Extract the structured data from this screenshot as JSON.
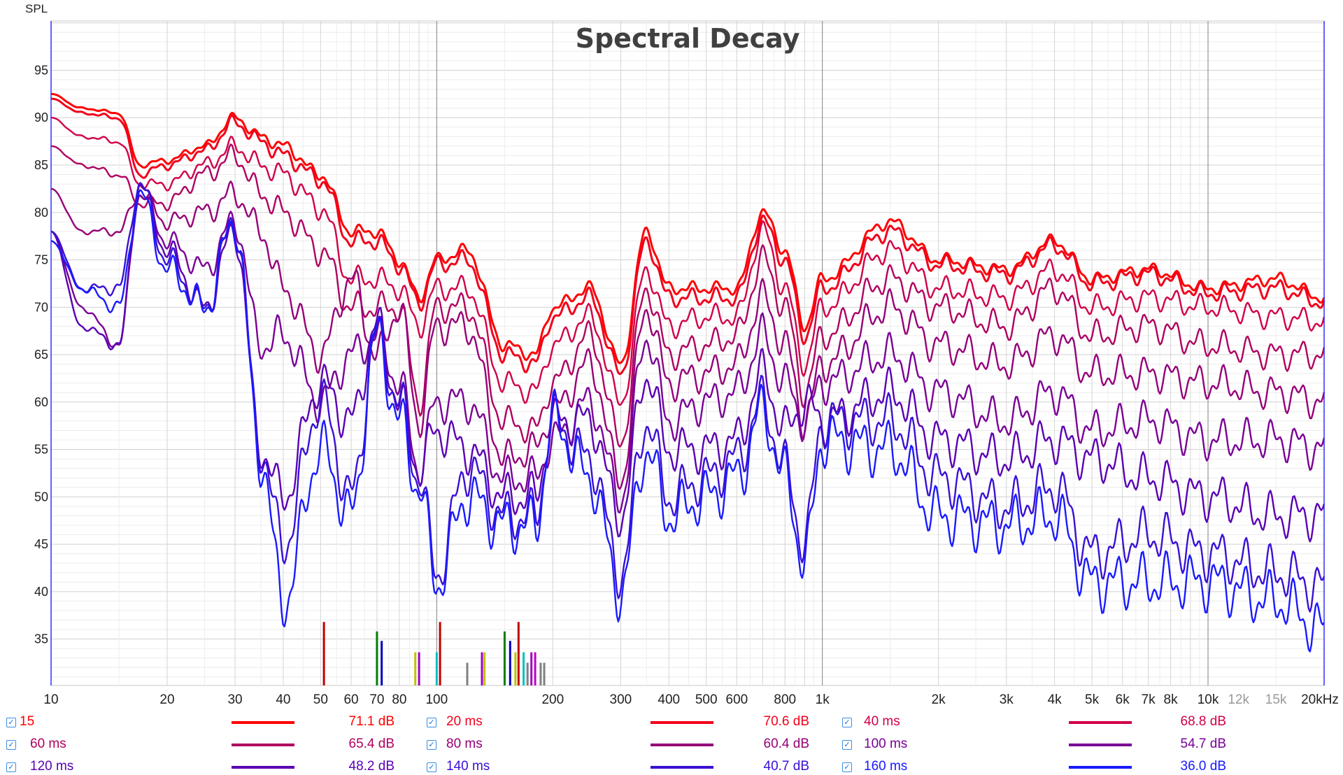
{
  "chart_data": {
    "type": "line",
    "title": "Spectral Decay",
    "ylabel": "SPL",
    "xlabel": "kHz",
    "xscale": "log",
    "xlim": [
      10,
      20000
    ],
    "ylim": [
      30.1,
      100.2
    ],
    "grid": true,
    "legend_placement": "bottom",
    "y_ticks": [
      35,
      40,
      45,
      50,
      55,
      60,
      65,
      70,
      75,
      80,
      85,
      90,
      95
    ],
    "x_ticks": [
      {
        "v": 10,
        "l": "10"
      },
      {
        "v": 20,
        "l": "20"
      },
      {
        "v": 30,
        "l": "30"
      },
      {
        "v": 40,
        "l": "40"
      },
      {
        "v": 50,
        "l": "50"
      },
      {
        "v": 60,
        "l": "60"
      },
      {
        "v": 70,
        "l": "70"
      },
      {
        "v": 80,
        "l": "80"
      },
      {
        "v": 100,
        "l": "100"
      },
      {
        "v": 200,
        "l": "200"
      },
      {
        "v": 300,
        "l": "300"
      },
      {
        "v": 400,
        "l": "400"
      },
      {
        "v": 500,
        "l": "500"
      },
      {
        "v": 600,
        "l": "600"
      },
      {
        "v": 800,
        "l": "800"
      },
      {
        "v": 1000,
        "l": "1k"
      },
      {
        "v": 2000,
        "l": "2k"
      },
      {
        "v": 3000,
        "l": "3k"
      },
      {
        "v": 4000,
        "l": "4k"
      },
      {
        "v": 5000,
        "l": "5k"
      },
      {
        "v": 6000,
        "l": "6k"
      },
      {
        "v": 7000,
        "l": "7k"
      },
      {
        "v": 8000,
        "l": "8k"
      },
      {
        "v": 10000,
        "l": "10k"
      },
      {
        "v": 12000,
        "l": "12k",
        "muted": true
      },
      {
        "v": 15000,
        "l": "15k",
        "muted": true
      },
      {
        "v": 20000,
        "l": "20kHz"
      }
    ],
    "x": [
      10,
      12,
      15,
      17,
      20,
      25,
      30,
      35,
      40,
      50,
      60,
      70,
      80,
      90,
      100,
      120,
      150,
      180,
      200,
      250,
      300,
      350,
      400,
      500,
      600,
      700,
      800,
      900,
      1000,
      1500,
      2000,
      3000,
      4000,
      5000,
      7000,
      10000,
      15000,
      20000
    ],
    "series": [
      {
        "name": "15",
        "value": "71.1 dB",
        "color": "#ff0000",
        "values": [
          92.5,
          91,
          90.5,
          85,
          85.5,
          87,
          90,
          88,
          87,
          84,
          78,
          78,
          75,
          71,
          75,
          76,
          66,
          65,
          70,
          72,
          64,
          78,
          72,
          72,
          72,
          80,
          76,
          68,
          73,
          79,
          75,
          74,
          77,
          73,
          74,
          72,
          73,
          71
        ]
      },
      {
        "name": "20 ms",
        "value": "70.6 dB",
        "color": "#f2001c",
        "values": [
          92,
          90.5,
          90,
          84,
          85,
          86.5,
          89.5,
          87.5,
          86,
          83.5,
          77,
          77,
          74.5,
          70.5,
          74.5,
          75,
          65,
          64,
          69,
          71,
          63,
          77,
          71,
          71,
          71,
          79,
          75,
          67,
          72,
          78,
          74.5,
          73.5,
          76.5,
          72.5,
          73.5,
          71.5,
          72,
          70.5
        ]
      },
      {
        "name": "40 ms",
        "value": "68.8 dB",
        "color": "#d20046",
        "values": [
          90,
          88,
          87.5,
          83,
          83,
          85,
          87,
          85,
          84,
          80.5,
          73,
          73,
          72,
          68,
          72,
          72,
          62,
          61,
          66,
          69,
          60,
          74,
          68,
          69,
          69,
          78,
          72,
          64,
          70,
          76,
          72,
          71,
          74,
          70,
          71,
          70,
          69,
          68.5
        ]
      },
      {
        "name": "60 ms",
        "value": "65.4 dB",
        "color": "#b00060",
        "values": [
          87,
          85,
          84,
          81,
          81,
          84,
          86,
          82,
          80,
          76,
          70,
          70,
          70,
          60,
          70,
          70,
          58,
          57,
          62,
          67,
          56,
          72,
          65,
          66,
          67,
          75,
          70,
          61,
          67,
          73,
          70,
          68,
          72,
          67,
          68,
          66,
          65,
          65
        ]
      },
      {
        "name": "80 ms",
        "value": "60.4 dB",
        "color": "#960078",
        "values": [
          82.5,
          78,
          78,
          82,
          79,
          80,
          82,
          78,
          72,
          65,
          73,
          65,
          70,
          58,
          68,
          68,
          54,
          55,
          59,
          64,
          52,
          70,
          62,
          63,
          64,
          71,
          66,
          58,
          64,
          70,
          66,
          64,
          67,
          63,
          63,
          62,
          61,
          60
        ]
      },
      {
        "name": "100 ms",
        "value": "54.7 dB",
        "color": "#7a0096",
        "values": [
          78,
          70,
          66,
          82,
          77,
          74,
          79,
          66,
          67,
          60,
          65,
          67,
          62,
          53,
          60,
          60,
          52,
          52,
          56,
          60,
          50,
          67,
          58,
          60,
          61,
          67,
          62,
          58,
          62,
          65,
          61,
          58,
          61,
          57,
          58,
          56,
          56,
          55
        ]
      },
      {
        "name": "120 ms",
        "value": "48.2 dB",
        "color": "#5a00b4",
        "values": [
          78,
          68,
          66,
          83,
          76,
          70,
          78,
          55,
          50,
          62,
          58,
          68,
          60,
          53,
          57,
          55,
          50,
          50,
          58,
          58,
          48,
          63,
          55,
          55,
          56,
          63,
          57,
          60,
          58,
          61,
          56,
          54,
          56,
          54,
          52,
          50,
          48,
          48
        ]
      },
      {
        "name": "140 ms",
        "value": "40.7 dB",
        "color": "#3a10d4",
        "values": [
          78,
          72,
          72,
          83,
          75,
          70,
          79,
          55,
          45,
          60,
          50,
          67,
          60,
          52,
          42,
          53,
          48,
          48,
          58,
          54,
          42,
          58,
          50,
          52,
          54,
          60,
          53,
          45,
          58,
          58,
          52,
          49,
          51,
          44,
          46,
          44,
          42,
          40.5
        ]
      },
      {
        "name": "160 ms",
        "value": "36.0 dB",
        "color": "#1a1aff",
        "values": [
          77,
          72,
          70,
          82,
          74,
          70,
          79,
          54,
          39,
          55,
          48,
          67,
          58,
          51,
          41,
          50,
          47,
          47,
          58,
          52,
          40,
          55,
          48,
          50,
          52,
          59,
          52,
          43,
          56,
          55,
          48,
          47,
          48,
          41,
          41,
          41,
          39,
          36
        ]
      }
    ],
    "markers": [
      {
        "f": 51,
        "top": 36.8,
        "color": "#c00000"
      },
      {
        "f": 70,
        "top": 35.8,
        "color": "#008000"
      },
      {
        "f": 72,
        "top": 34.8,
        "color": "#0000c0"
      },
      {
        "f": 88,
        "top": 33.6,
        "color": "#c0c000"
      },
      {
        "f": 90,
        "top": 33.6,
        "color": "#a000c0"
      },
      {
        "f": 100,
        "top": 33.6,
        "color": "#00c0c0"
      },
      {
        "f": 102,
        "top": 36.8,
        "color": "#c00000"
      },
      {
        "f": 120,
        "top": 32.5,
        "color": "#808080"
      },
      {
        "f": 131,
        "top": 33.6,
        "color": "#a000c0"
      },
      {
        "f": 133,
        "top": 33.6,
        "color": "#c0c000"
      },
      {
        "f": 150,
        "top": 35.8,
        "color": "#008000"
      },
      {
        "f": 155,
        "top": 34.8,
        "color": "#0000c0"
      },
      {
        "f": 160,
        "top": 33.6,
        "color": "#c0c000"
      },
      {
        "f": 163,
        "top": 36.8,
        "color": "#c00000"
      },
      {
        "f": 168,
        "top": 33.6,
        "color": "#00c0c0"
      },
      {
        "f": 172,
        "top": 32.5,
        "color": "#808080"
      },
      {
        "f": 176,
        "top": 33.6,
        "color": "#a000c0"
      },
      {
        "f": 180,
        "top": 33.6,
        "color": "#c000c0"
      },
      {
        "f": 186,
        "top": 32.5,
        "color": "#808080"
      },
      {
        "f": 190,
        "top": 32.5,
        "color": "#808080"
      }
    ]
  }
}
